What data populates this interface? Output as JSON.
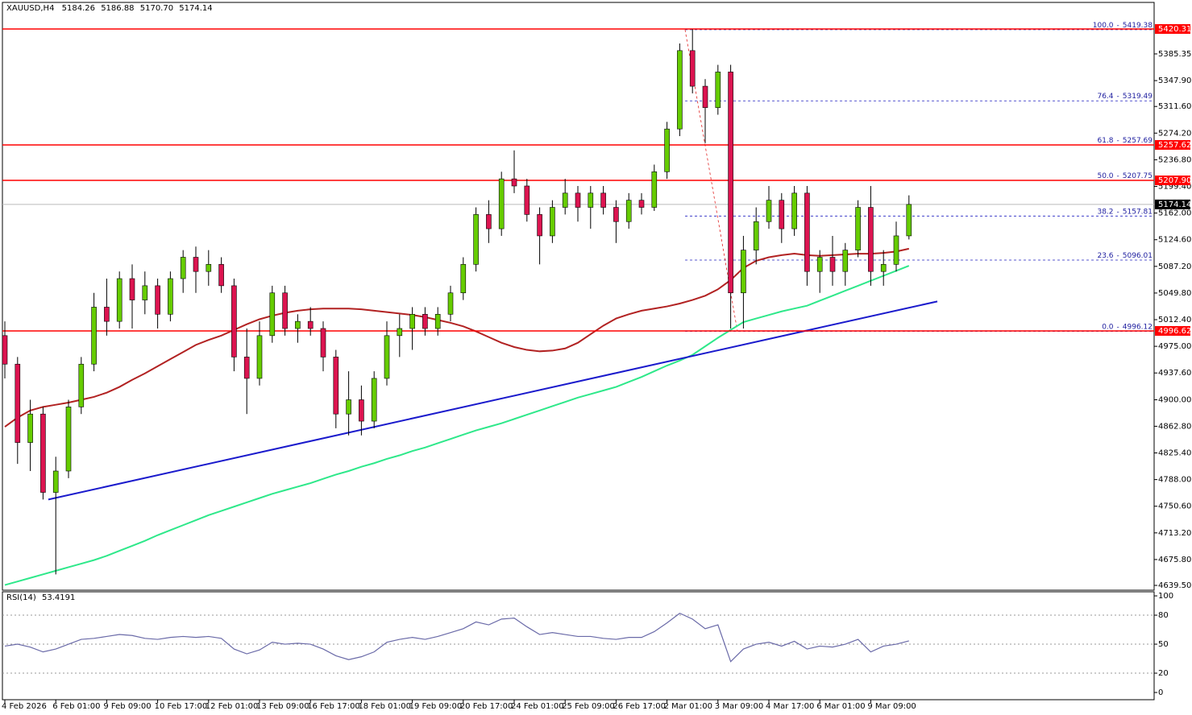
{
  "header": {
    "symbol": "XAUUSD,H4",
    "quote": [
      5184.26,
      5186.88,
      {
        "value": 5170.7,
        "label": "5170.70"
      },
      5174.14
    ]
  },
  "chart_data": [
    {
      "type": "candlestick",
      "categories": [
        "4 Feb 2026",
        null,
        null,
        null,
        "6 Feb 01:00",
        null,
        null,
        null,
        "9 Feb 09:00",
        null,
        null,
        null,
        "10 Feb 17:00",
        null,
        null,
        null,
        "12 Feb 01:00",
        null,
        null,
        null,
        "13 Feb 09:00",
        null,
        null,
        null,
        "16 Feb 17:00",
        null,
        null,
        null,
        "18 Feb 01:00",
        null,
        null,
        null,
        "19 Feb 09:00",
        null,
        null,
        null,
        "20 Feb 17:00",
        null,
        null,
        null,
        "24 Feb 01:00",
        null,
        null,
        null,
        "25 Feb 09:00",
        null,
        null,
        null,
        "26 Feb 17:00",
        null,
        null,
        null,
        "2 Mar 01:00",
        null,
        null,
        null,
        "3 Mar 09:00",
        null,
        null,
        null,
        "4 Mar 17:00",
        null,
        null,
        null,
        "6 Mar 01:00",
        null,
        null,
        null,
        "9 Mar 09:00",
        null,
        null,
        null
      ],
      "open": [
        4990,
        4950,
        4840,
        4880,
        4770,
        4800,
        4890,
        4950,
        5030,
        5010,
        5070,
        5040,
        5060,
        5020,
        5070,
        5100,
        5080,
        5090,
        5060,
        4960,
        4930,
        4990,
        5050,
        5000,
        5010,
        5000,
        4960,
        4880,
        4900,
        4870,
        4930,
        4990,
        5000,
        5020,
        5000,
        5020,
        5050,
        5090,
        5160,
        5140,
        5210,
        5200,
        5160,
        5130,
        5170,
        5190,
        5170,
        5190,
        5170,
        5150,
        5180,
        5170,
        5220,
        5280,
        5390,
        5340,
        5310,
        5360,
        5050,
        5110,
        5150,
        5180,
        5140,
        5190,
        5080,
        5100,
        5080,
        5110,
        5170,
        5080,
        5090,
        5130
      ],
      "high": [
        5010,
        4960,
        4900,
        4890,
        4820,
        4900,
        4960,
        5050,
        5070,
        5080,
        5090,
        5080,
        5070,
        5080,
        5110,
        5115,
        5110,
        5100,
        5070,
        5000,
        5010,
        5060,
        5060,
        5020,
        5030,
        5010,
        4970,
        4940,
        4920,
        4940,
        5010,
        5020,
        5030,
        5030,
        5030,
        5060,
        5100,
        5170,
        5180,
        5220,
        5250,
        5210,
        5170,
        5180,
        5210,
        5200,
        5200,
        5200,
        5180,
        5190,
        5190,
        5230,
        5290,
        5400,
        5420,
        5350,
        5370,
        5370,
        5130,
        5170,
        5200,
        5190,
        5200,
        5200,
        5110,
        5130,
        5120,
        5180,
        5200,
        5110,
        5150,
        5186.88
      ],
      "low": [
        4930,
        4810,
        4800,
        4760,
        4655,
        4790,
        4880,
        4940,
        4990,
        5000,
        5000,
        5020,
        5000,
        5010,
        5050,
        5050,
        5060,
        5050,
        4940,
        4880,
        4920,
        4980,
        4990,
        4980,
        4990,
        4940,
        4860,
        4850,
        4850,
        4860,
        4920,
        4960,
        4970,
        4990,
        4990,
        5010,
        5040,
        5080,
        5120,
        5130,
        5190,
        5150,
        5090,
        5120,
        5160,
        5150,
        5140,
        5160,
        5120,
        5140,
        5160,
        5165,
        5210,
        5270,
        5330,
        5260,
        5300,
        5000,
        5000,
        5090,
        5140,
        5120,
        5130,
        5060,
        5050,
        5060,
        5060,
        5100,
        5060,
        5060,
        5080,
        5125
      ],
      "close": [
        4950,
        4840,
        4880,
        4770,
        4800,
        4890,
        4950,
        5030,
        5010,
        5070,
        5040,
        5060,
        5020,
        5070,
        5100,
        5080,
        5090,
        5060,
        4960,
        4930,
        4990,
        5050,
        5000,
        5010,
        5000,
        4960,
        4880,
        4900,
        4870,
        4930,
        4990,
        5000,
        5020,
        5000,
        5020,
        5050,
        5090,
        5160,
        5140,
        5210,
        5200,
        5160,
        5130,
        5170,
        5190,
        5170,
        5190,
        5170,
        5150,
        5180,
        5170,
        5220,
        5280,
        5390,
        5340,
        5310,
        5360,
        5050,
        5110,
        5150,
        5180,
        5140,
        5190,
        5080,
        5100,
        5080,
        5110,
        5170,
        5080,
        5090,
        5130,
        5174.14
      ],
      "up_color": "#66cc00",
      "down_color": "#dc1450",
      "overlays": [
        {
          "color": "#b22222",
          "values": [
            4862,
            4875,
            4885,
            4890,
            4893,
            4896,
            4900,
            4904,
            4910,
            4918,
            4928,
            4937,
            4947,
            4957,
            4967,
            4977,
            4984,
            4990,
            4998,
            5006,
            5013,
            5018,
            5022,
            5025,
            5027,
            5028,
            5028,
            5028,
            5027,
            5025,
            5023,
            5021,
            5019,
            5016,
            5012,
            5008,
            5003,
            4996,
            4988,
            4980,
            4974,
            4970,
            4968,
            4969,
            4972,
            4980,
            4992,
            5004,
            5014,
            5020,
            5025,
            5028,
            5031,
            5035,
            5040,
            5046,
            5055,
            5068,
            5085,
            5095,
            5100,
            5103,
            5105,
            5103,
            5102,
            5103,
            5104,
            5105,
            5105,
            5106,
            5108,
            5112
          ]
        },
        {
          "color": "#2ee88a",
          "values": [
            4640,
            4645,
            4650,
            4655,
            4660,
            4665,
            4670,
            4675,
            4681,
            4688,
            4695,
            4702,
            4710,
            4717,
            4724,
            4731,
            4738,
            4744,
            4750,
            4756,
            4762,
            4768,
            4773,
            4778,
            4783,
            4789,
            4795,
            4800,
            4806,
            4811,
            4817,
            4822,
            4828,
            4833,
            4839,
            4845,
            4851,
            4857,
            4862,
            4867,
            4873,
            4879,
            4885,
            4891,
            4897,
            4903,
            4908,
            4913,
            4918,
            4925,
            4932,
            4940,
            4948,
            4955,
            4963,
            4975,
            4987,
            4998,
            5009,
            5014,
            5019,
            5024,
            5028,
            5032,
            5039,
            5046,
            5053,
            5060,
            5067,
            5074,
            5081,
            5088
          ]
        }
      ],
      "trendline": {
        "color": "#1a1acc",
        "values": [
          4760,
          5038
        ]
      },
      "levels": [
        5420.31,
        5257.62,
        {
          "value": 5207.9,
          "label": "5207.90"
        },
        4996.62
      ],
      "level_color": "#ff0000",
      "current_price": 5174.14,
      "fibonacci": [
        {
          "level": {
            "value": 100,
            "label": "100.0"
          },
          "price": 5419.38
        },
        {
          "level": 76.4,
          "price": 5319.49
        },
        {
          "level": 61.8,
          "price": 5257.69
        },
        {
          "level": {
            "value": 50,
            "label": "50.0"
          },
          "price": 5207.75
        },
        {
          "level": 38.2,
          "price": 5157.81
        },
        {
          "level": 23.6,
          "price": 5096.01
        },
        {
          "level": {
            "value": 0,
            "label": "0.0"
          },
          "price": 4996.12
        }
      ],
      "fib_label_separator": "-",
      "ylim": [
        4630.5,
        5461
      ],
      "yticks": [
        {
          "value": 5385.35,
          "label": "5385.35"
        },
        {
          "value": 5347.9,
          "label": "5347.90"
        },
        {
          "value": 5311.6,
          "label": "5311.60"
        },
        {
          "value": 5274.2,
          "label": "5274.20"
        },
        {
          "value": 5236.8,
          "label": "5236.80"
        },
        {
          "value": 5199.4,
          "label": "5199.40"
        },
        {
          "value": 5162,
          "label": "5162.00"
        },
        {
          "value": 5124.6,
          "label": "5124.60"
        },
        {
          "value": 5087.2,
          "label": "5087.20"
        },
        {
          "value": 5049.8,
          "label": "5049.80"
        },
        {
          "value": 5012.4,
          "label": "5012.40"
        },
        {
          "value": 4975,
          "label": "4975.00"
        },
        {
          "value": 4937.6,
          "label": "4937.60"
        },
        {
          "value": 4900,
          "label": "4900.00"
        },
        {
          "value": 4862.8,
          "label": "4862.80"
        },
        {
          "value": 4825.4,
          "label": "4825.40"
        },
        {
          "value": 4788,
          "label": "4788.00"
        },
        {
          "value": 4750.6,
          "label": "4750.60"
        },
        {
          "value": 4713.2,
          "label": "4713.20"
        },
        {
          "value": 4675.8,
          "label": "4675.80"
        },
        {
          "value": 4639.5,
          "label": "4639.50"
        }
      ]
    },
    {
      "type": "line",
      "title": "RSI(14)",
      "current_value": 53.4191,
      "color": "#6a6aa8",
      "values": [
        48,
        50,
        47,
        42,
        45,
        50,
        55,
        56,
        58,
        60,
        59,
        56,
        55,
        57,
        58,
        57,
        58,
        56,
        45,
        40,
        44,
        52,
        50,
        51,
        50,
        45,
        38,
        34,
        37,
        42,
        52,
        55,
        57,
        55,
        58,
        62,
        66,
        73,
        70,
        76,
        77,
        68,
        60,
        62,
        60,
        58,
        58,
        56,
        55,
        57,
        57,
        63,
        72,
        82,
        76,
        66,
        70,
        32,
        45,
        50,
        52,
        48,
        53,
        45,
        48,
        47,
        50,
        55,
        42,
        48,
        50,
        53.4191
      ],
      "level_lines": [
        80,
        50,
        20
      ],
      "ylim": [
        -8.3,
        104.2
      ],
      "yticks": [
        100,
        80,
        50,
        20,
        0
      ]
    }
  ]
}
